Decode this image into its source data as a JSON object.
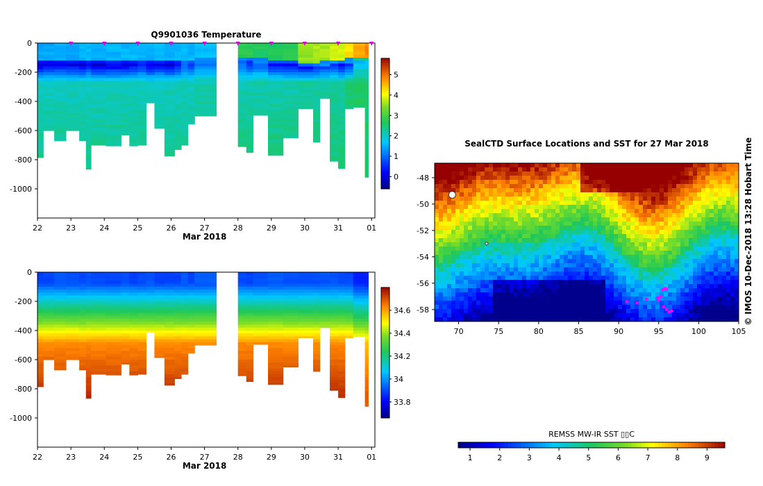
{
  "chart_data": [
    {
      "type": "heatmap",
      "title": "Q9901036  Temperature",
      "xlabel": "Mar 2018",
      "x_ticks": [
        "22",
        "23",
        "24",
        "25",
        "26",
        "27",
        "28",
        "29",
        "30",
        "31",
        "01"
      ],
      "x_range": [
        22,
        32.1
      ],
      "y_ticks": [
        0,
        -200,
        -400,
        -600,
        -800,
        -1000
      ],
      "y_range": [
        -1200,
        0
      ],
      "colorbar_ticks": [
        0,
        1,
        2,
        3,
        4,
        5
      ],
      "colorbar_range": [
        -0.6,
        5.8
      ],
      "gap": [
        27.35,
        28.0
      ],
      "columns": [
        {
          "t": 22.0,
          "w": 0.17,
          "mld": -110,
          "tc": -130,
          "max": -785,
          "surf": 1.4,
          "deep": 2.0,
          "core": -0.2,
          "bot": 2.3
        },
        {
          "t": 22.17,
          "w": 0.33,
          "mld": -110,
          "tc": -130,
          "max": -600,
          "surf": 1.4,
          "deep": 2.0,
          "core": -0.2,
          "bot": 2.3
        },
        {
          "t": 22.5,
          "w": 0.35,
          "mld": -110,
          "tc": -130,
          "max": -670,
          "surf": 1.4,
          "deep": 2.0,
          "core": 0.0,
          "bot": 2.3
        },
        {
          "t": 22.85,
          "w": 0.4,
          "mld": -110,
          "tc": -130,
          "max": -600,
          "surf": 1.4,
          "deep": 2.0,
          "core": -0.1,
          "bot": 2.3
        },
        {
          "t": 23.25,
          "w": 0.2,
          "mld": -115,
          "tc": -140,
          "max": -670,
          "surf": 1.5,
          "deep": 2.0,
          "core": -0.2,
          "bot": 2.3
        },
        {
          "t": 23.45,
          "w": 0.15,
          "mld": -115,
          "tc": -140,
          "max": -865,
          "surf": 1.5,
          "deep": 2.0,
          "core": 0.2,
          "bot": 2.3
        },
        {
          "t": 23.6,
          "w": 0.45,
          "mld": -115,
          "tc": -140,
          "max": -700,
          "surf": 1.5,
          "deep": 2.0,
          "core": -0.1,
          "bot": 2.3
        },
        {
          "t": 24.05,
          "w": 0.45,
          "mld": -120,
          "tc": -145,
          "max": -705,
          "surf": 1.5,
          "deep": 2.0,
          "core": 0.0,
          "bot": 2.3
        },
        {
          "t": 24.5,
          "w": 0.25,
          "mld": -115,
          "tc": -140,
          "max": -630,
          "surf": 1.5,
          "deep": 2.0,
          "core": -0.1,
          "bot": 2.3
        },
        {
          "t": 24.75,
          "w": 0.25,
          "mld": -110,
          "tc": -140,
          "max": -705,
          "surf": 1.5,
          "deep": 2.0,
          "core": 0.1,
          "bot": 2.3
        },
        {
          "t": 25.0,
          "w": 0.25,
          "mld": -110,
          "tc": -135,
          "max": -700,
          "surf": 1.5,
          "deep": 2.0,
          "core": 0.3,
          "bot": 2.3
        },
        {
          "t": 25.25,
          "w": 0.25,
          "mld": -105,
          "tc": -135,
          "max": -410,
          "surf": 1.5,
          "deep": 2.0,
          "core": -0.1,
          "bot": 2.3
        },
        {
          "t": 25.5,
          "w": 0.3,
          "mld": -110,
          "tc": -140,
          "max": -585,
          "surf": 1.5,
          "deep": 2.0,
          "core": 0.1,
          "bot": 2.3
        },
        {
          "t": 25.8,
          "w": 0.3,
          "mld": -110,
          "tc": -140,
          "max": -775,
          "surf": 1.5,
          "deep": 2.0,
          "core": -0.1,
          "bot": 2.3
        },
        {
          "t": 26.1,
          "w": 0.2,
          "mld": -110,
          "tc": -140,
          "max": -730,
          "surf": 1.5,
          "deep": 2.0,
          "core": 0.2,
          "bot": 2.3
        },
        {
          "t": 26.3,
          "w": 0.2,
          "mld": -110,
          "tc": -140,
          "max": -700,
          "surf": 1.5,
          "deep": 2.0,
          "core": 0.9,
          "bot": 2.3
        },
        {
          "t": 26.5,
          "w": 0.2,
          "mld": -110,
          "tc": -140,
          "max": -555,
          "surf": 1.5,
          "deep": 2.0,
          "core": 0.5,
          "bot": 2.3
        },
        {
          "t": 26.7,
          "w": 0.65,
          "mld": -100,
          "tc": -130,
          "max": -500,
          "surf": 1.6,
          "deep": 2.1,
          "core": 0.9,
          "bot": 2.4
        },
        {
          "t": 28.0,
          "w": 0.25,
          "mld": -90,
          "tc": -120,
          "max": -710,
          "surf": 2.7,
          "deep": 2.1,
          "core": 0.8,
          "bot": 2.4
        },
        {
          "t": 28.25,
          "w": 0.2,
          "mld": -90,
          "tc": -120,
          "max": -750,
          "surf": 2.7,
          "deep": 2.1,
          "core": 0.4,
          "bot": 2.4
        },
        {
          "t": 28.45,
          "w": 0.45,
          "mld": -95,
          "tc": -125,
          "max": -495,
          "surf": 2.6,
          "deep": 2.1,
          "core": 0.7,
          "bot": 2.4
        },
        {
          "t": 28.9,
          "w": 0.45,
          "mld": -110,
          "tc": -140,
          "max": -770,
          "surf": 2.6,
          "deep": 2.1,
          "core": 0.3,
          "bot": 2.4
        },
        {
          "t": 29.35,
          "w": 0.45,
          "mld": -110,
          "tc": -140,
          "max": -650,
          "surf": 2.7,
          "deep": 2.1,
          "core": 0.2,
          "bot": 2.4
        },
        {
          "t": 29.8,
          "w": 0.45,
          "mld": -130,
          "tc": -150,
          "max": -450,
          "surf": 3.5,
          "deep": 2.2,
          "core": 0.0,
          "bot": 2.4
        },
        {
          "t": 30.25,
          "w": 0.2,
          "mld": -130,
          "tc": -150,
          "max": -680,
          "surf": 3.6,
          "deep": 2.2,
          "core": 0.3,
          "bot": 2.4
        },
        {
          "t": 30.45,
          "w": 0.3,
          "mld": -120,
          "tc": -145,
          "max": -380,
          "surf": 3.6,
          "deep": 2.2,
          "core": 0.4,
          "bot": 2.4
        },
        {
          "t": 30.75,
          "w": 0.25,
          "mld": -110,
          "tc": -140,
          "max": -810,
          "surf": 3.8,
          "deep": 2.2,
          "core": 0.6,
          "bot": 2.4
        },
        {
          "t": 31.0,
          "w": 0.2,
          "mld": -110,
          "tc": -140,
          "max": -860,
          "surf": 3.8,
          "deep": 2.2,
          "core": 0.2,
          "bot": 2.4
        },
        {
          "t": 31.2,
          "w": 0.25,
          "mld": -100,
          "tc": -130,
          "max": -450,
          "surf": 4.2,
          "deep": 2.4,
          "core": 0.4,
          "bot": 2.6
        },
        {
          "t": 31.45,
          "w": 0.35,
          "mld": -90,
          "tc": -120,
          "max": -440,
          "surf": 4.6,
          "deep": 2.5,
          "core": 1.5,
          "bot": 2.7
        },
        {
          "t": 31.8,
          "w": 0.1,
          "mld": -90,
          "tc": -120,
          "max": -920,
          "surf": 4.8,
          "deep": 2.5,
          "core": 1.6,
          "bot": 2.5
        }
      ],
      "profile_markers": [
        23.0,
        24.0,
        25.0,
        26.0,
        27.0,
        28.0,
        29.0,
        30.0,
        31.0,
        32.0
      ]
    },
    {
      "type": "heatmap",
      "title": "",
      "xlabel": "Mar 2018",
      "x_ticks": [
        "22",
        "23",
        "24",
        "25",
        "26",
        "27",
        "28",
        "29",
        "30",
        "31",
        "01"
      ],
      "x_range": [
        22,
        32.1
      ],
      "y_ticks": [
        0,
        -200,
        -400,
        -600,
        -800,
        -1000
      ],
      "y_range": [
        -1200,
        0
      ],
      "colorbar_ticks": [
        33.8,
        34,
        34.2,
        34.4,
        34.6
      ],
      "colorbar_range": [
        33.66,
        34.8
      ],
      "quantity": "salinity"
    },
    {
      "type": "heatmap",
      "title": "SealCTD Surface Locations and SST for 27 Mar 2018",
      "x_ticks": [
        70,
        75,
        80,
        85,
        90,
        95,
        100,
        105
      ],
      "x_range": [
        67,
        105
      ],
      "y_ticks": [
        -48,
        -50,
        -52,
        -54,
        -56,
        -58
      ],
      "y_range": [
        -58.9,
        -46.9
      ],
      "colorbar_label": "REMSS MW-IR SST ▯▯C",
      "colorbar_ticks": [
        1,
        2,
        3,
        4,
        5,
        6,
        7,
        8,
        9
      ],
      "colorbar_range": [
        0.6,
        9.6
      ],
      "side_label": "©  IMOS 10-Dec-2018 13:28 Hobart Time",
      "track_points": [
        [
          95.3,
          -57.0
        ],
        [
          95.5,
          -56.5
        ],
        [
          95.8,
          -56.4
        ],
        [
          96.0,
          -56.45
        ],
        [
          94.9,
          -57.1
        ],
        [
          95.0,
          -57.3
        ],
        [
          95.6,
          -57.8
        ],
        [
          96.0,
          -58.0
        ],
        [
          96.3,
          -58.2
        ],
        [
          96.6,
          -58.1
        ],
        [
          93.5,
          -57.2
        ],
        [
          91.0,
          -57.4
        ],
        [
          92.3,
          -57.5
        ]
      ]
    }
  ]
}
